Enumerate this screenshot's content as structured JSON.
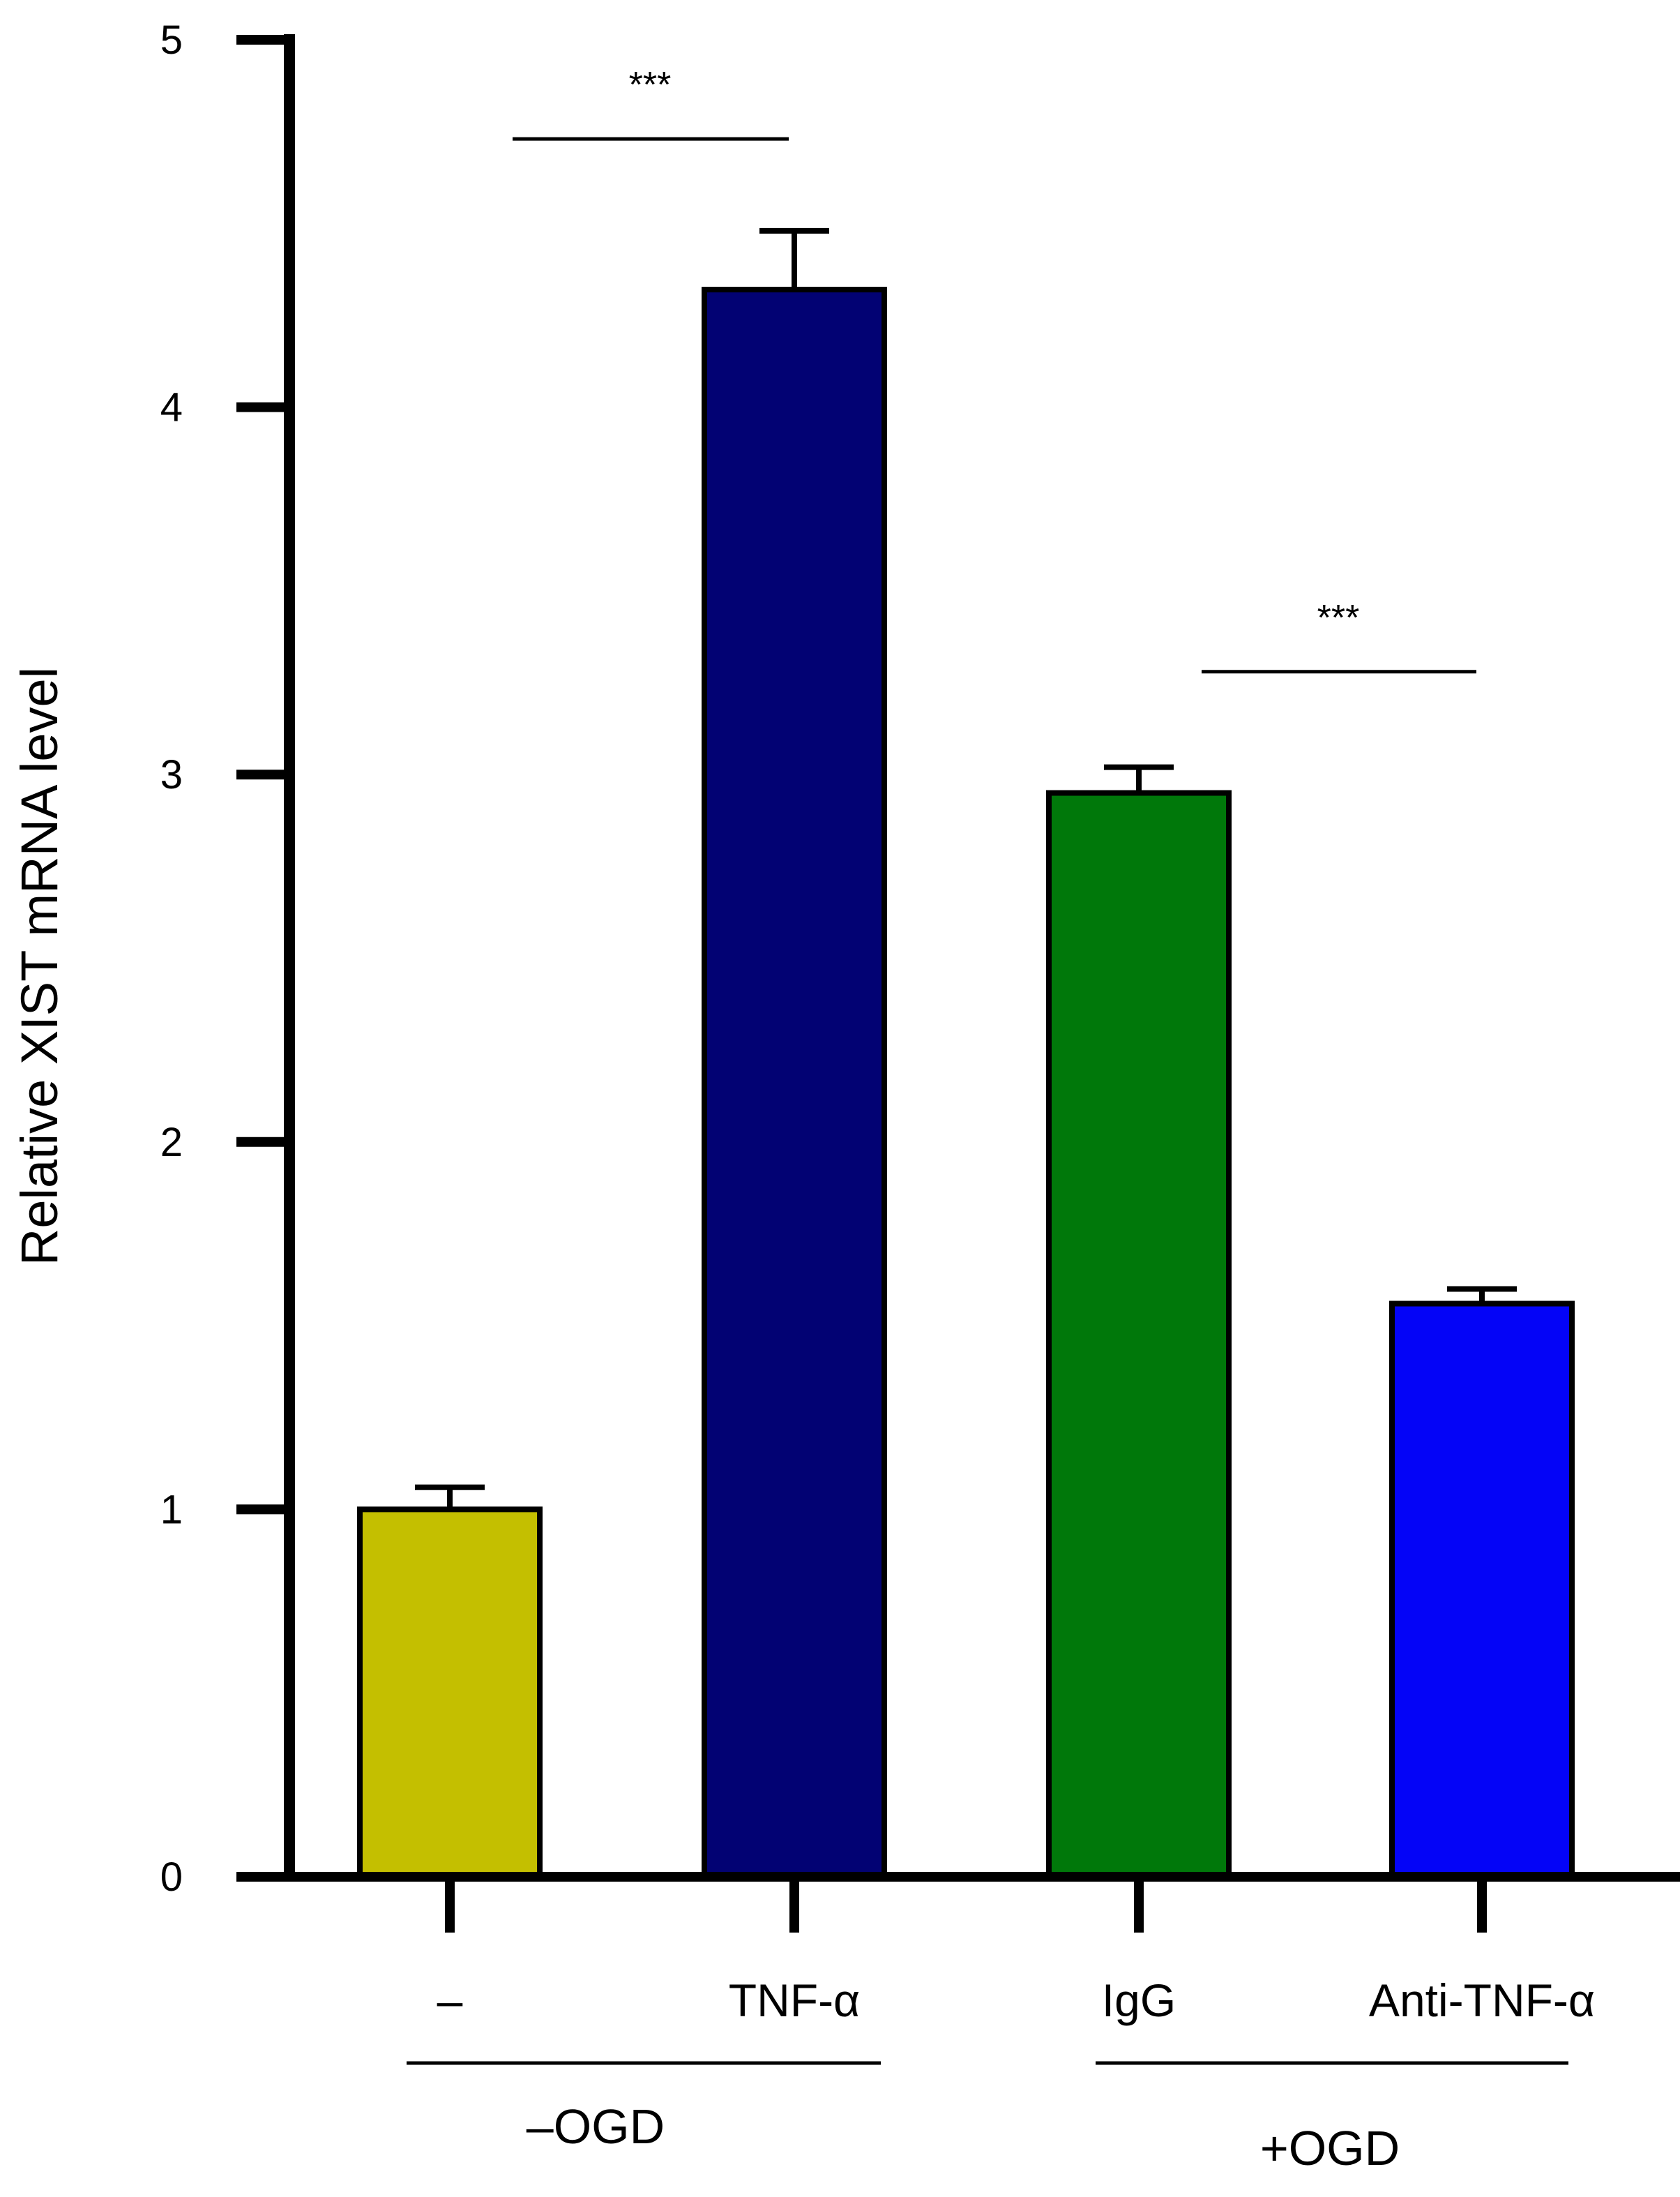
{
  "chart_data": {
    "type": "bar",
    "title": "",
    "xlabel": "",
    "ylabel": "Relative XIST mRNA level",
    "ylim": [
      0,
      5
    ],
    "yticks": [
      "0",
      "1",
      "2",
      "3",
      "4",
      "5"
    ],
    "grid": false,
    "categories": [
      "–",
      "TNF-α",
      "IgG",
      "Anti-TNF-α"
    ],
    "values": [
      1.0,
      4.32,
      2.95,
      1.56
    ],
    "errors": [
      0.06,
      0.16,
      0.07,
      0.04
    ],
    "colors": [
      "#c4bf00",
      "#020273",
      "#00780a",
      "#0404f7"
    ],
    "groups": [
      {
        "label": "–OGD",
        "categories": [
          0,
          1
        ]
      },
      {
        "label": "+OGD",
        "categories": [
          2,
          3
        ]
      }
    ],
    "significance": [
      {
        "from": 0,
        "to": 1,
        "label": "***",
        "y": 4.73
      },
      {
        "from": 2,
        "to": 3,
        "label": "***",
        "y": 3.28
      }
    ]
  }
}
